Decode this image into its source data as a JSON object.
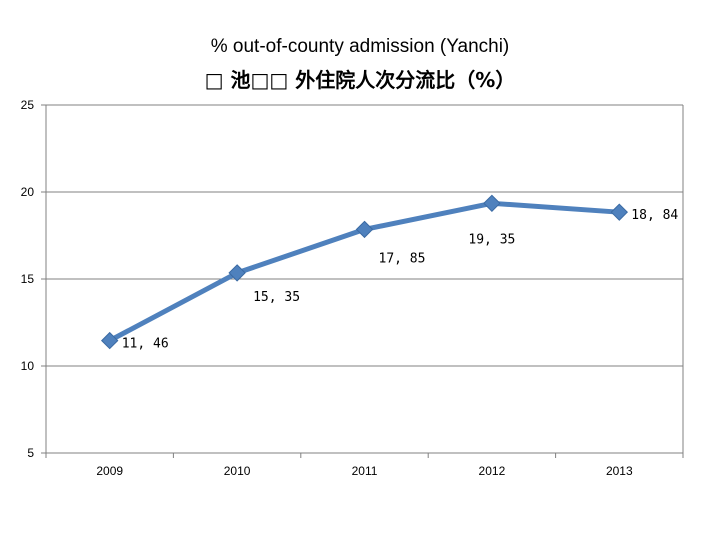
{
  "titles": {
    "english": "% out-of-county admission (Yanchi)",
    "chinese": "□ 池□□ 外住院人次分流比（%）"
  },
  "chart_data": {
    "type": "line",
    "categories": [
      "2009",
      "2010",
      "2011",
      "2012",
      "2013"
    ],
    "series": [
      {
        "values": [
          11.46,
          15.35,
          17.85,
          19.35,
          18.84
        ],
        "labels": [
          "11, 46",
          "15, 35",
          "17, 85",
          "19, 35",
          "18, 84"
        ]
      }
    ],
    "yticks": [
      "5",
      "10",
      "15",
      "20",
      "25"
    ],
    "ylim": [
      5,
      25
    ],
    "grid": true,
    "legend": "none",
    "colors": {
      "line": "#4F81BD",
      "marker": "#4F81BD",
      "marker_stroke": "#3A6AA3",
      "gridline": "#808080",
      "axis": "#808080"
    }
  }
}
